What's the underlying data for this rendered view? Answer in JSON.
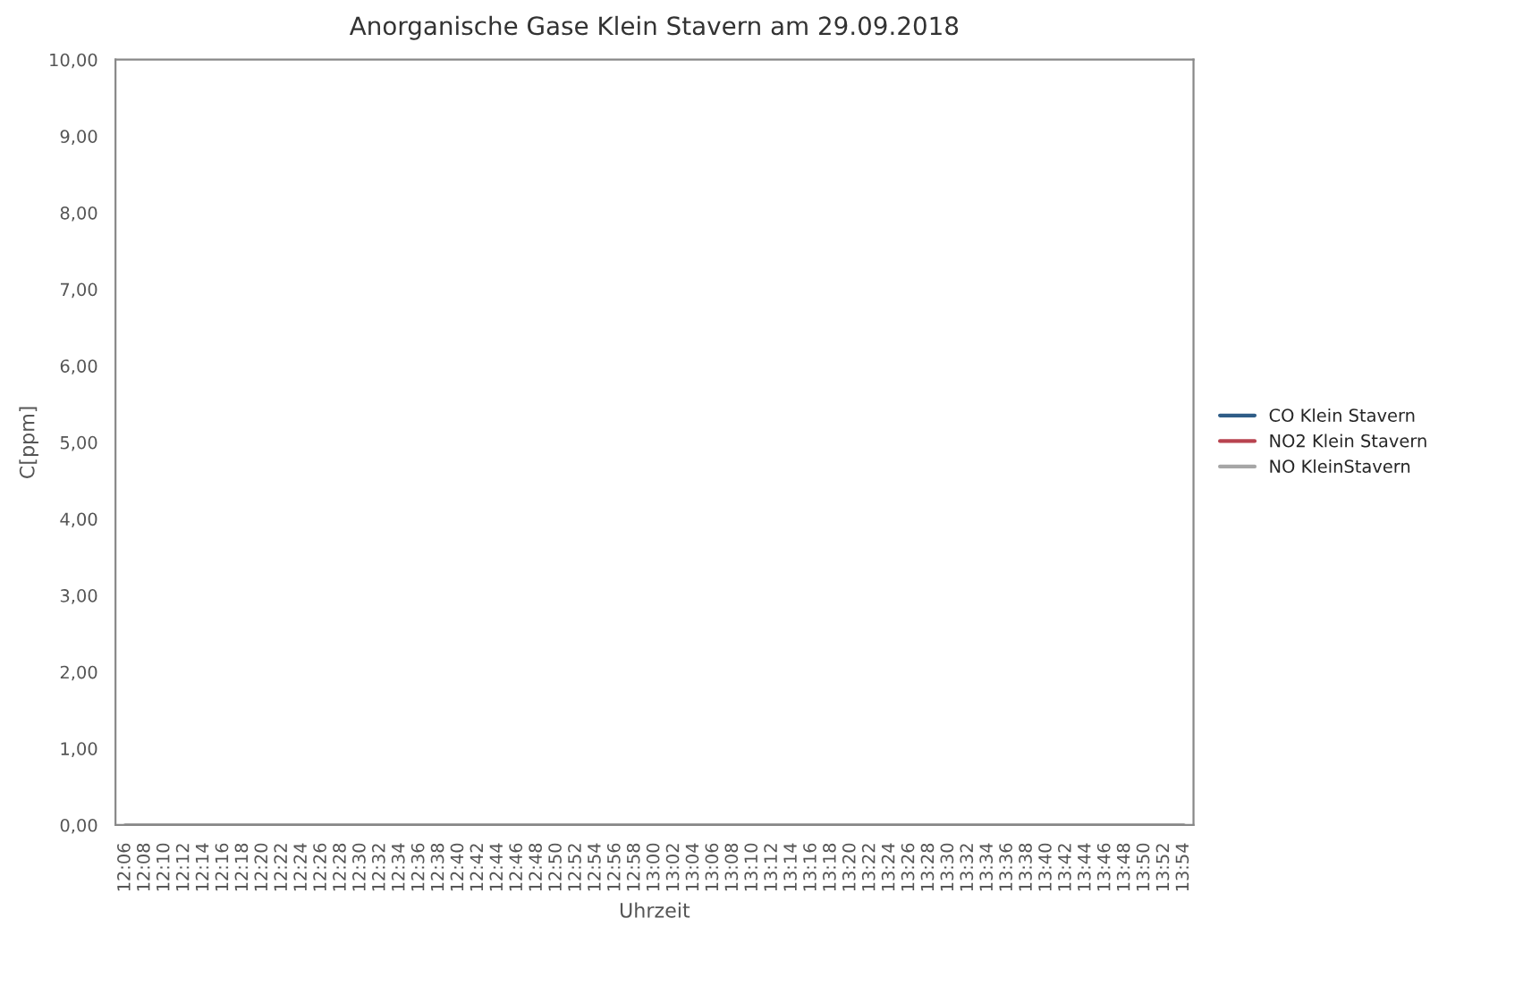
{
  "chart_data": {
    "type": "line",
    "title": "Anorganische Gase Klein Stavern am 29.09.2018",
    "xlabel": "Uhrzeit",
    "ylabel": "C[ppm]",
    "categories": [
      "12:06",
      "12:08",
      "12:10",
      "12:12",
      "12:14",
      "12:16",
      "12:18",
      "12:20",
      "12:22",
      "12:24",
      "12:26",
      "12:28",
      "12:30",
      "12:32",
      "12:34",
      "12:36",
      "12:38",
      "12:40",
      "12:42",
      "12:44",
      "12:46",
      "12:48",
      "12:50",
      "12:52",
      "12:54",
      "12:56",
      "12:58",
      "13:00",
      "13:02",
      "13:04",
      "13:06",
      "13:08",
      "13:10",
      "13:12",
      "13:14",
      "13:16",
      "13:18",
      "13:20",
      "13:22",
      "13:24",
      "13:26",
      "13:28",
      "13:30",
      "13:32",
      "13:34",
      "13:36",
      "13:38",
      "13:40",
      "13:42",
      "13:44",
      "13:46",
      "13:48",
      "13:50",
      "13:52",
      "13:54"
    ],
    "series": [
      {
        "name": "CO Klein Stavern",
        "color": "#2f5d87",
        "values": [
          null,
          null,
          null,
          null,
          null,
          null,
          null,
          null,
          null,
          null,
          null,
          null,
          null,
          null,
          null,
          null,
          null,
          null,
          null,
          null,
          null,
          null,
          null,
          null,
          null,
          null,
          null,
          null,
          null,
          null,
          null,
          null,
          null,
          null,
          null,
          null,
          null,
          null,
          null,
          null,
          null,
          null,
          null,
          null,
          null,
          null,
          null,
          null,
          null,
          null,
          null,
          null,
          null,
          null,
          null
        ]
      },
      {
        "name": "NO2 Klein Stavern",
        "color": "#b8434f",
        "values": [
          null,
          null,
          null,
          null,
          null,
          null,
          null,
          null,
          null,
          null,
          null,
          null,
          null,
          null,
          null,
          null,
          null,
          null,
          null,
          null,
          null,
          null,
          null,
          null,
          null,
          null,
          null,
          null,
          null,
          null,
          null,
          null,
          null,
          null,
          null,
          null,
          null,
          null,
          null,
          null,
          null,
          null,
          null,
          null,
          null,
          null,
          null,
          null,
          null,
          null,
          null,
          null,
          null,
          null,
          null
        ]
      },
      {
        "name": "NO KleinStavern",
        "color": "#a6a6a6",
        "values": [
          0,
          0,
          0,
          0,
          0,
          0,
          0,
          0,
          0,
          0,
          0,
          0,
          0,
          0,
          0,
          0,
          0,
          0,
          0,
          0,
          0,
          0,
          0,
          0,
          0,
          0,
          0,
          0,
          0,
          0,
          0,
          0,
          0,
          0,
          0,
          0,
          0,
          0,
          0,
          0,
          0,
          0,
          0,
          0,
          0,
          0,
          0,
          0,
          0,
          0,
          0,
          0,
          0,
          0,
          0
        ]
      }
    ],
    "ylim": [
      0,
      10
    ],
    "yticks": [
      {
        "value": 0,
        "label": "0,00"
      },
      {
        "value": 1,
        "label": "1,00"
      },
      {
        "value": 2,
        "label": "2,00"
      },
      {
        "value": 3,
        "label": "3,00"
      },
      {
        "value": 4,
        "label": "4,00"
      },
      {
        "value": 5,
        "label": "5,00"
      },
      {
        "value": 6,
        "label": "6,00"
      },
      {
        "value": 7,
        "label": "7,00"
      },
      {
        "value": 8,
        "label": "8,00"
      },
      {
        "value": 9,
        "label": "9,00"
      },
      {
        "value": 10,
        "label": "10,00"
      }
    ],
    "legend": "right",
    "grid": false,
    "marker": "none",
    "line_style": "solid"
  }
}
